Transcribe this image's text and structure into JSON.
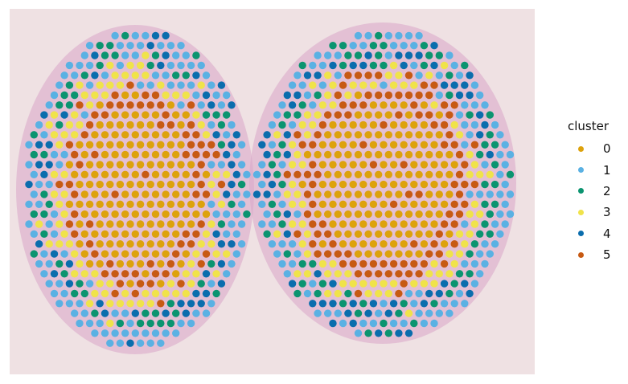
{
  "chart_data": {
    "type": "scatter",
    "title": "",
    "xlabel": "",
    "ylabel": "",
    "legend": {
      "title": "cluster",
      "placement": "right",
      "entries": [
        {
          "label": "0",
          "color": "#DDA20C"
        },
        {
          "label": "1",
          "color": "#5AB1E3"
        },
        {
          "label": "2",
          "color": "#0B9470"
        },
        {
          "label": "3",
          "color": "#F0E34A"
        },
        {
          "label": "4",
          "color": "#0A6DAD"
        },
        {
          "label": "5",
          "color": "#C75A13"
        }
      ]
    },
    "background": "tissue histology image (two coronal brain-like sections)",
    "spot_pattern": "hexagonal grid of spots colored by cluster; cluster 0 in the two central cores, cluster 5 forming rings around the cores, cluster 3 bands, clusters 2 and 4 scattered in outer layers, cluster 1 along the periphery"
  }
}
